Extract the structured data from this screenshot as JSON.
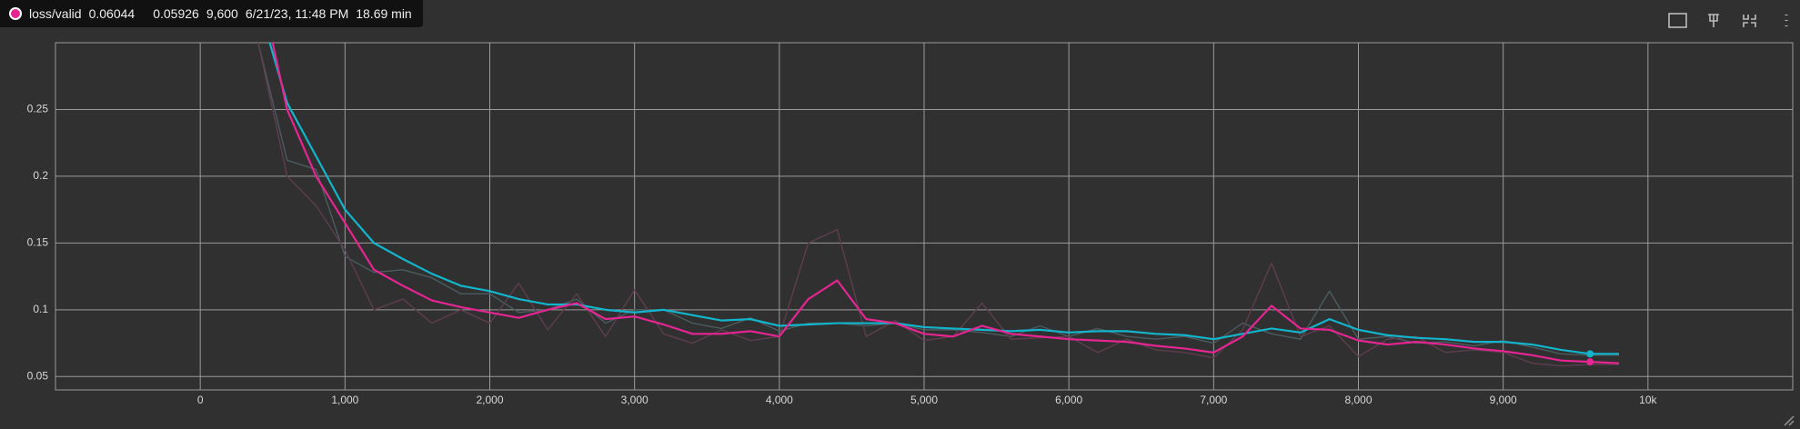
{
  "chart_data": {
    "type": "line",
    "tooltip": {
      "run": "loss/valid",
      "smoothed": "0.06044",
      "value": "0.05926",
      "step": {
        "value": 9600,
        "label": "9,600"
      },
      "time": "6/21/23, 11:48 PM",
      "relative": "18.69 min",
      "color": "#e52592"
    },
    "x": [
      400,
      600,
      800,
      1000,
      1200,
      1400,
      1600,
      1800,
      2000,
      2200,
      2400,
      2600,
      2800,
      3000,
      3200,
      3400,
      3600,
      3800,
      4000,
      4200,
      4400,
      4600,
      4800,
      5000,
      5200,
      5400,
      5600,
      5800,
      6000,
      6200,
      6400,
      6600,
      6800,
      7000,
      7200,
      7400,
      7600,
      7800,
      8000,
      8200,
      8400,
      8600,
      8800,
      9000,
      9200,
      9400,
      9600,
      9800
    ],
    "series": [
      {
        "color": "#4a5c60",
        "values": [
          0.3,
          0.212,
          0.205,
          0.14,
          0.128,
          0.13,
          0.124,
          0.112,
          0.112,
          0.098,
          0.1,
          0.108,
          0.09,
          0.1,
          0.1,
          0.09,
          0.086,
          0.094,
          0.084,
          0.09,
          0.09,
          0.088,
          0.09,
          0.085,
          0.085,
          0.083,
          0.08,
          0.088,
          0.08,
          0.086,
          0.08,
          0.078,
          0.08,
          0.075,
          0.09,
          0.082,
          0.078,
          0.114,
          0.078,
          0.08,
          0.075,
          0.076,
          0.073,
          0.077,
          0.072,
          0.067,
          0.066,
          0.066
        ]
      },
      {
        "color": "#5e3d4e",
        "values": [
          0.3,
          0.2,
          0.178,
          0.145,
          0.1,
          0.108,
          0.09,
          0.1,
          0.09,
          0.12,
          0.085,
          0.112,
          0.08,
          0.115,
          0.082,
          0.075,
          0.085,
          0.077,
          0.08,
          0.15,
          0.16,
          0.08,
          0.092,
          0.077,
          0.08,
          0.105,
          0.078,
          0.079,
          0.08,
          0.068,
          0.078,
          0.07,
          0.068,
          0.064,
          0.085,
          0.135,
          0.08,
          0.088,
          0.065,
          0.078,
          0.08,
          0.068,
          0.07,
          0.068,
          0.06,
          0.058,
          0.059,
          0.059
        ]
      },
      {
        "color": "#12b5cb",
        "values": [
          0.33,
          0.255,
          0.215,
          0.175,
          0.15,
          0.138,
          0.127,
          0.118,
          0.114,
          0.108,
          0.104,
          0.104,
          0.1,
          0.098,
          0.1,
          0.096,
          0.092,
          0.093,
          0.088,
          0.089,
          0.09,
          0.09,
          0.09,
          0.087,
          0.086,
          0.085,
          0.084,
          0.085,
          0.083,
          0.084,
          0.084,
          0.082,
          0.081,
          0.078,
          0.082,
          0.086,
          0.083,
          0.093,
          0.085,
          0.081,
          0.079,
          0.078,
          0.076,
          0.076,
          0.074,
          0.07,
          0.067,
          0.067
        ]
      },
      {
        "color": "#e52592",
        "values": [
          0.35,
          0.25,
          0.2,
          0.165,
          0.13,
          0.118,
          0.107,
          0.102,
          0.098,
          0.094,
          0.1,
          0.105,
          0.093,
          0.095,
          0.089,
          0.082,
          0.082,
          0.084,
          0.08,
          0.108,
          0.122,
          0.093,
          0.09,
          0.082,
          0.08,
          0.088,
          0.082,
          0.08,
          0.078,
          0.077,
          0.076,
          0.073,
          0.071,
          0.068,
          0.08,
          0.103,
          0.086,
          0.085,
          0.077,
          0.074,
          0.076,
          0.074,
          0.071,
          0.069,
          0.066,
          0.062,
          0.061,
          0.06
        ]
      }
    ],
    "xlim": [
      -1000,
      11000
    ],
    "ylim": [
      0.04,
      0.3
    ],
    "xticks": [
      0,
      {
        "value": 1000,
        "label": "1,000"
      },
      {
        "value": 2000,
        "label": "2,000"
      },
      {
        "value": 3000,
        "label": "3,000"
      },
      {
        "value": 4000,
        "label": "4,000"
      },
      {
        "value": 5000,
        "label": "5,000"
      },
      {
        "value": 6000,
        "label": "6,000"
      },
      {
        "value": 7000,
        "label": "7,000"
      },
      {
        "value": 8000,
        "label": "8,000"
      },
      {
        "value": 9000,
        "label": "9,000"
      },
      {
        "value": 10000,
        "label": "10k"
      }
    ],
    "yticks": [
      0.05,
      0.1,
      0.15,
      0.2,
      0.25
    ],
    "grid": true
  }
}
